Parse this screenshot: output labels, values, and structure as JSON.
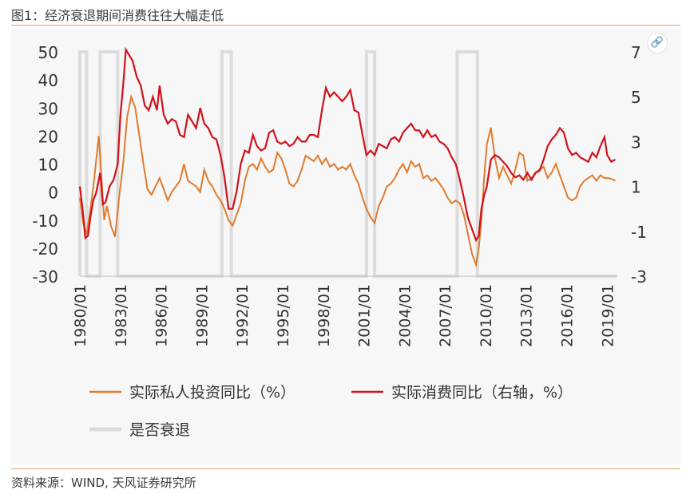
{
  "page": {
    "title": "图1：经济衰退期间消费往往大幅走低",
    "source": "资料来源：WIND, 天风证券研究所",
    "link_icon": "link-icon"
  },
  "colors": {
    "investment": "#E07B2E",
    "consumption": "#D0121B",
    "recession": "#DCDCDC",
    "axis_text": "#333333",
    "rule": "#D9A06A"
  },
  "chart_data": {
    "type": "line",
    "y_left": {
      "range": [
        -30,
        50
      ],
      "ticks": [
        -30,
        -20,
        -10,
        0,
        10,
        20,
        30,
        40,
        50
      ]
    },
    "y_right": {
      "range": [
        -3,
        7
      ],
      "ticks": [
        -3,
        -1,
        1,
        3,
        5,
        7
      ]
    },
    "x_range": [
      1980.0,
      2019.75
    ],
    "x_tick_labels": [
      "1980/01",
      "1983/01",
      "1986/01",
      "1989/01",
      "1992/01",
      "1995/01",
      "1998/01",
      "2001/01",
      "2004/01",
      "2007/01",
      "2010/01",
      "2013/01",
      "2016/01",
      "2019/01"
    ],
    "recessions": [
      [
        1980.0,
        1980.5
      ],
      [
        1981.5,
        1982.8
      ],
      [
        1990.5,
        1991.2
      ],
      [
        2001.2,
        2001.8
      ],
      [
        2007.9,
        2009.4
      ]
    ],
    "legend": {
      "investment": "实际私人投资同比（%）",
      "consumption": "实际消费同比（右轴，%）",
      "recession": "是否衰退"
    },
    "series": [
      {
        "name": "实际私人投资同比（%）",
        "axis": "left",
        "points": [
          [
            1980.0,
            -2
          ],
          [
            1980.25,
            -11
          ],
          [
            1980.5,
            -15
          ],
          [
            1980.75,
            -7
          ],
          [
            1981.0,
            2
          ],
          [
            1981.2,
            11
          ],
          [
            1981.4,
            20
          ],
          [
            1981.6,
            5
          ],
          [
            1981.8,
            -10
          ],
          [
            1982.0,
            -5
          ],
          [
            1982.3,
            -12
          ],
          [
            1982.6,
            -16
          ],
          [
            1982.9,
            -2
          ],
          [
            1983.2,
            10
          ],
          [
            1983.5,
            27
          ],
          [
            1983.8,
            34
          ],
          [
            1984.1,
            30
          ],
          [
            1984.4,
            20
          ],
          [
            1984.7,
            10
          ],
          [
            1985.0,
            1
          ],
          [
            1985.3,
            -1
          ],
          [
            1985.6,
            2
          ],
          [
            1985.9,
            5
          ],
          [
            1986.2,
            1
          ],
          [
            1986.5,
            -3
          ],
          [
            1986.8,
            0
          ],
          [
            1987.1,
            2
          ],
          [
            1987.4,
            4
          ],
          [
            1987.7,
            10
          ],
          [
            1988.0,
            4
          ],
          [
            1988.3,
            3
          ],
          [
            1988.6,
            2
          ],
          [
            1988.9,
            0
          ],
          [
            1989.2,
            8
          ],
          [
            1989.5,
            4
          ],
          [
            1989.8,
            2
          ],
          [
            1990.1,
            -1
          ],
          [
            1990.4,
            -3
          ],
          [
            1990.7,
            -6
          ],
          [
            1991.0,
            -10
          ],
          [
            1991.3,
            -12
          ],
          [
            1991.6,
            -8
          ],
          [
            1991.9,
            -4
          ],
          [
            1992.2,
            4
          ],
          [
            1992.5,
            9
          ],
          [
            1992.8,
            10
          ],
          [
            1993.1,
            8
          ],
          [
            1993.4,
            12
          ],
          [
            1993.7,
            9
          ],
          [
            1994.0,
            7
          ],
          [
            1994.3,
            8
          ],
          [
            1994.6,
            14
          ],
          [
            1994.9,
            12
          ],
          [
            1995.2,
            8
          ],
          [
            1995.5,
            3
          ],
          [
            1995.8,
            2
          ],
          [
            1996.1,
            4
          ],
          [
            1996.4,
            8
          ],
          [
            1996.7,
            13
          ],
          [
            1997.0,
            12
          ],
          [
            1997.3,
            11
          ],
          [
            1997.6,
            13
          ],
          [
            1997.9,
            10
          ],
          [
            1998.2,
            12
          ],
          [
            1998.5,
            9
          ],
          [
            1998.8,
            10
          ],
          [
            1999.1,
            8
          ],
          [
            1999.4,
            9
          ],
          [
            1999.7,
            8
          ],
          [
            2000.0,
            10
          ],
          [
            2000.3,
            6
          ],
          [
            2000.6,
            3
          ],
          [
            2000.9,
            -2
          ],
          [
            2001.2,
            -6
          ],
          [
            2001.5,
            -9
          ],
          [
            2001.8,
            -11
          ],
          [
            2002.1,
            -5
          ],
          [
            2002.4,
            -2
          ],
          [
            2002.7,
            2
          ],
          [
            2003.0,
            3
          ],
          [
            2003.3,
            5
          ],
          [
            2003.6,
            8
          ],
          [
            2003.9,
            10
          ],
          [
            2004.2,
            7
          ],
          [
            2004.5,
            11
          ],
          [
            2004.8,
            9
          ],
          [
            2005.1,
            10
          ],
          [
            2005.4,
            5
          ],
          [
            2005.7,
            6
          ],
          [
            2006.0,
            4
          ],
          [
            2006.3,
            5
          ],
          [
            2006.6,
            3
          ],
          [
            2006.9,
            1
          ],
          [
            2007.2,
            -2
          ],
          [
            2007.5,
            -4
          ],
          [
            2007.8,
            -3
          ],
          [
            2008.1,
            -4
          ],
          [
            2008.4,
            -8
          ],
          [
            2008.7,
            -15
          ],
          [
            2009.0,
            -22
          ],
          [
            2009.3,
            -26
          ],
          [
            2009.5,
            -20
          ],
          [
            2009.7,
            -10
          ],
          [
            2009.9,
            5
          ],
          [
            2010.1,
            17
          ],
          [
            2010.4,
            23
          ],
          [
            2010.7,
            12
          ],
          [
            2011.0,
            5
          ],
          [
            2011.3,
            9
          ],
          [
            2011.6,
            6
          ],
          [
            2011.9,
            3
          ],
          [
            2012.2,
            8
          ],
          [
            2012.5,
            14
          ],
          [
            2012.8,
            13
          ],
          [
            2013.1,
            4
          ],
          [
            2013.4,
            5
          ],
          [
            2013.7,
            7
          ],
          [
            2014.0,
            8
          ],
          [
            2014.3,
            9
          ],
          [
            2014.6,
            5
          ],
          [
            2014.9,
            7
          ],
          [
            2015.2,
            10
          ],
          [
            2015.5,
            6
          ],
          [
            2015.8,
            2
          ],
          [
            2016.1,
            -2
          ],
          [
            2016.4,
            -3
          ],
          [
            2016.7,
            -2
          ],
          [
            2017.0,
            2
          ],
          [
            2017.3,
            4
          ],
          [
            2017.6,
            5
          ],
          [
            2017.9,
            6
          ],
          [
            2018.2,
            4
          ],
          [
            2018.5,
            6
          ],
          [
            2018.8,
            5
          ],
          [
            2019.1,
            5
          ],
          [
            2019.4,
            4.5
          ],
          [
            2019.6,
            4
          ]
        ]
      },
      {
        "name": "实际消费同比（右轴，%）",
        "axis": "right",
        "points": [
          [
            1980.0,
            1.0
          ],
          [
            1980.2,
            0
          ],
          [
            1980.4,
            -1.3
          ],
          [
            1980.6,
            -1.2
          ],
          [
            1980.8,
            -0.3
          ],
          [
            1981.0,
            0.4
          ],
          [
            1981.2,
            0.7
          ],
          [
            1981.5,
            1.6
          ],
          [
            1981.7,
            0.2
          ],
          [
            1981.9,
            0.3
          ],
          [
            1982.2,
            1.0
          ],
          [
            1982.5,
            1.3
          ],
          [
            1982.8,
            2.0
          ],
          [
            1983.0,
            4.2
          ],
          [
            1983.2,
            5.5
          ],
          [
            1983.4,
            7.1
          ],
          [
            1983.6,
            6.9
          ],
          [
            1983.9,
            6.6
          ],
          [
            1984.2,
            5.9
          ],
          [
            1984.5,
            5.5
          ],
          [
            1984.8,
            4.6
          ],
          [
            1985.1,
            4.4
          ],
          [
            1985.4,
            5.0
          ],
          [
            1985.7,
            4.4
          ],
          [
            1985.9,
            5.5
          ],
          [
            1986.2,
            4.2
          ],
          [
            1986.5,
            3.8
          ],
          [
            1986.8,
            4.0
          ],
          [
            1987.1,
            3.9
          ],
          [
            1987.4,
            3.3
          ],
          [
            1987.7,
            3.2
          ],
          [
            1988.0,
            4.2
          ],
          [
            1988.3,
            3.9
          ],
          [
            1988.6,
            3.6
          ],
          [
            1988.9,
            4.5
          ],
          [
            1989.2,
            3.8
          ],
          [
            1989.5,
            3.6
          ],
          [
            1989.8,
            3.2
          ],
          [
            1990.1,
            3.1
          ],
          [
            1990.4,
            2.4
          ],
          [
            1990.7,
            1.4
          ],
          [
            1991.0,
            0.0
          ],
          [
            1991.3,
            0.0
          ],
          [
            1991.6,
            0.8
          ],
          [
            1991.9,
            2.0
          ],
          [
            1992.2,
            2.6
          ],
          [
            1992.5,
            2.5
          ],
          [
            1992.8,
            3.3
          ],
          [
            1993.1,
            2.8
          ],
          [
            1993.4,
            2.6
          ],
          [
            1993.7,
            2.7
          ],
          [
            1994.0,
            3.4
          ],
          [
            1994.3,
            3.5
          ],
          [
            1994.6,
            3.0
          ],
          [
            1994.9,
            2.9
          ],
          [
            1995.2,
            3.0
          ],
          [
            1995.5,
            2.8
          ],
          [
            1995.8,
            2.9
          ],
          [
            1996.1,
            3.2
          ],
          [
            1996.4,
            3.0
          ],
          [
            1996.7,
            3.0
          ],
          [
            1997.0,
            3.3
          ],
          [
            1997.3,
            3.3
          ],
          [
            1997.6,
            3.2
          ],
          [
            1997.9,
            4.4
          ],
          [
            1998.2,
            5.4
          ],
          [
            1998.5,
            5.0
          ],
          [
            1998.8,
            5.2
          ],
          [
            1999.1,
            5.0
          ],
          [
            1999.4,
            4.8
          ],
          [
            1999.7,
            5.0
          ],
          [
            2000.0,
            5.3
          ],
          [
            2000.3,
            4.4
          ],
          [
            2000.6,
            4.3
          ],
          [
            2000.9,
            3.3
          ],
          [
            2001.2,
            2.4
          ],
          [
            2001.5,
            2.6
          ],
          [
            2001.8,
            2.4
          ],
          [
            2002.1,
            2.9
          ],
          [
            2002.4,
            2.8
          ],
          [
            2002.7,
            2.7
          ],
          [
            2003.0,
            3.1
          ],
          [
            2003.3,
            3.2
          ],
          [
            2003.6,
            3.0
          ],
          [
            2003.9,
            3.4
          ],
          [
            2004.2,
            3.6
          ],
          [
            2004.5,
            3.8
          ],
          [
            2004.8,
            3.5
          ],
          [
            2005.1,
            3.5
          ],
          [
            2005.4,
            3.2
          ],
          [
            2005.7,
            3.5
          ],
          [
            2006.0,
            3.2
          ],
          [
            2006.3,
            3.3
          ],
          [
            2006.6,
            3.0
          ],
          [
            2006.9,
            2.9
          ],
          [
            2007.2,
            2.7
          ],
          [
            2007.5,
            2.3
          ],
          [
            2007.8,
            2.0
          ],
          [
            2008.1,
            1.3
          ],
          [
            2008.4,
            0.5
          ],
          [
            2008.7,
            -0.4
          ],
          [
            2009.0,
            -0.9
          ],
          [
            2009.3,
            -1.4
          ],
          [
            2009.5,
            -1.2
          ],
          [
            2009.7,
            0.0
          ],
          [
            2009.9,
            0.6
          ],
          [
            2010.1,
            1.0
          ],
          [
            2010.4,
            2.2
          ],
          [
            2010.7,
            2.4
          ],
          [
            2011.0,
            2.3
          ],
          [
            2011.3,
            2.1
          ],
          [
            2011.6,
            1.9
          ],
          [
            2011.9,
            1.6
          ],
          [
            2012.2,
            1.4
          ],
          [
            2012.5,
            1.5
          ],
          [
            2012.8,
            1.3
          ],
          [
            2013.1,
            1.6
          ],
          [
            2013.4,
            1.3
          ],
          [
            2013.7,
            1.6
          ],
          [
            2014.0,
            1.7
          ],
          [
            2014.3,
            2.2
          ],
          [
            2014.6,
            2.8
          ],
          [
            2014.9,
            3.1
          ],
          [
            2015.2,
            3.3
          ],
          [
            2015.5,
            3.6
          ],
          [
            2015.8,
            3.4
          ],
          [
            2016.1,
            2.7
          ],
          [
            2016.4,
            2.4
          ],
          [
            2016.7,
            2.5
          ],
          [
            2017.0,
            2.3
          ],
          [
            2017.3,
            2.2
          ],
          [
            2017.6,
            2.1
          ],
          [
            2017.9,
            2.5
          ],
          [
            2018.2,
            2.3
          ],
          [
            2018.5,
            2.8
          ],
          [
            2018.8,
            3.2
          ],
          [
            2019.0,
            2.4
          ],
          [
            2019.3,
            2.1
          ],
          [
            2019.6,
            2.2
          ]
        ]
      }
    ]
  }
}
